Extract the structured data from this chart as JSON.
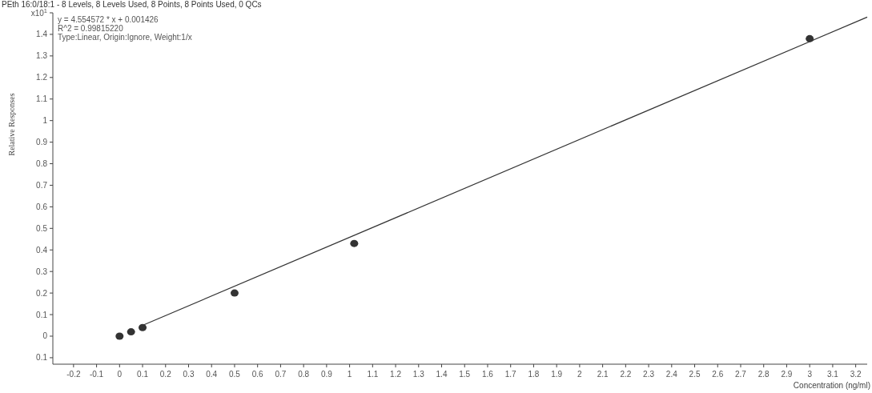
{
  "chart_data": {
    "type": "scatter",
    "title": "PEth 16:0/18:1 - 8 Levels, 8 Levels Used, 8 Points, 8 Points Used, 0 QCs",
    "xlabel": "Concentration (ng/ml)",
    "ylabel": "Relative Responses",
    "annotations": [
      "y = 4.554572 * x  + 0.001426",
      "R^2 = 0.99815220",
      "Type:Linear, Origin:Ignore, Weight:1/x"
    ],
    "xlim": [
      -0.29,
      3.25
    ],
    "ylim": [
      -0.13,
      1.5
    ],
    "xticks": [
      -0.2,
      -0.1,
      0,
      0.1,
      0.2,
      0.3,
      0.4,
      0.5,
      0.6,
      0.7,
      0.8,
      0.9,
      1,
      1.1,
      1.2,
      1.3,
      1.4,
      1.5,
      1.6,
      1.7,
      1.8,
      1.9,
      2,
      2.1,
      2.2,
      2.3,
      2.4,
      2.5,
      2.6,
      2.7,
      2.8,
      2.9,
      3,
      3.1,
      3.2
    ],
    "yticks": [
      {
        "value": -0.1,
        "label": "0.1"
      },
      0,
      0.1,
      0.2,
      0.3,
      0.4,
      0.5,
      0.6,
      0.7,
      0.8,
      0.9,
      1,
      1.1,
      1.2,
      1.3,
      1.4,
      {
        "value": 1.5,
        "label": "x10$^{1}$"
      }
    ],
    "marker": "circle",
    "series": [
      {
        "color": "#333333",
        "x": [
          0,
          0.05,
          0.1,
          0.5,
          1.02,
          3
        ],
        "values": [
          0,
          0.02,
          0.04,
          0.2,
          0.43,
          1.38
        ]
      },
      {
        "type": "line",
        "color": "#333333",
        "marker": "none",
        "x": [
          0.1,
          3.25
        ],
        "values": [
          0.05,
          1.48
        ]
      }
    ]
  }
}
